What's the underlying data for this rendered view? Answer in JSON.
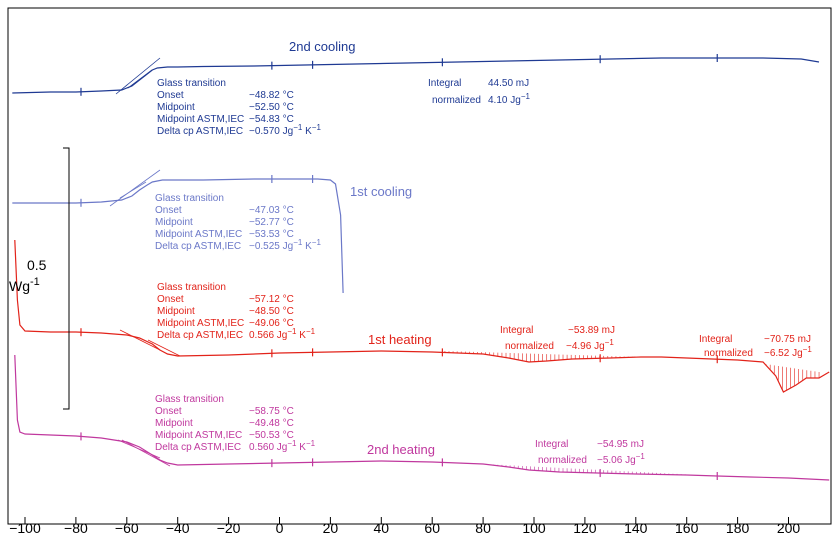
{
  "chart_data": {
    "type": "line",
    "title": "",
    "xlabel": "°C",
    "ylabel": "",
    "xlim": [
      -105,
      216
    ],
    "x_ticks": [
      "-100",
      "-80",
      "-60",
      "-40",
      "-20",
      "0",
      "20",
      "40",
      "60",
      "80",
      "100",
      "120",
      "140",
      "160",
      "180",
      "200",
      "°C"
    ],
    "grid": false,
    "scale_bar": {
      "value": "0.5",
      "unit": "Wg",
      "exponent": "-1"
    },
    "colors": {
      "2nd_cooling": "#1f3a93",
      "1st_cooling": "#6b78c8",
      "1st_heating": "#e2231a",
      "2nd_heating": "#c0389e"
    },
    "series": [
      {
        "name": "2nd cooling",
        "x": [
          -105,
          -90,
          -80,
          -70,
          -62,
          -58,
          -55,
          -52,
          -50,
          -48,
          -46,
          -44,
          -40,
          -30,
          -10,
          10,
          30,
          50,
          70,
          90,
          110,
          130,
          150,
          170,
          190,
          205,
          212
        ],
        "y": [
          93,
          92,
          92,
          91,
          90,
          86,
          80,
          74,
          70,
          68,
          67.5,
          67,
          67,
          66.5,
          66,
          65,
          64,
          63,
          62,
          61,
          60,
          59,
          58,
          58,
          58,
          59,
          62
        ],
        "annotation": {
          "heading": "Glass transition",
          "rows": [
            [
              "Onset",
              "−48.82 °C"
            ],
            [
              "Midpoint",
              "−52.50 °C"
            ],
            [
              "Midpoint ASTM,IEC",
              "−54.83 °C"
            ],
            [
              "Delta cp ASTM,IEC",
              "−0.570 Jg",
              "−1",
              " K",
              "−1"
            ]
          ],
          "integral": "44.50 mJ",
          "normalized": "4.10 Jg",
          "normalized_exp": "−1"
        }
      },
      {
        "name": "1st cooling",
        "x": [
          -105,
          -90,
          -80,
          -70,
          -62,
          -58,
          -55,
          -52,
          -50,
          -48,
          -46,
          -44,
          -40,
          -30,
          -10,
          5,
          15,
          20,
          22,
          24,
          25
        ],
        "y": [
          203,
          203,
          203,
          202,
          200,
          196,
          190,
          185,
          182,
          181,
          180,
          180,
          180,
          180,
          179,
          179,
          179,
          180,
          184,
          215,
          293
        ],
        "annotation": {
          "heading": "Glass transition",
          "rows": [
            [
              "Onset",
              "−47.03 °C"
            ],
            [
              "Midpoint",
              "−52.77 °C"
            ],
            [
              "Midpoint ASTM,IEC",
              "−53.53 °C"
            ],
            [
              "Delta cp ASTM,IEC",
              "−0.525 Jg",
              "−1",
              " K",
              "−1"
            ]
          ]
        }
      },
      {
        "name": "1st heating",
        "x": [
          -104,
          -103,
          -102,
          -100,
          -90,
          -80,
          -70,
          -60,
          -55,
          -50,
          -47,
          -44,
          -40,
          -20,
          0,
          20,
          40,
          60,
          80,
          90,
          98,
          105,
          115,
          130,
          142,
          150,
          160,
          170,
          180,
          190,
          195,
          198,
          203,
          207,
          212,
          216
        ],
        "y": [
          240,
          300,
          325,
          331,
          332,
          332,
          333,
          335,
          338,
          344,
          350,
          354,
          356,
          355,
          353,
          352,
          351,
          352,
          354,
          358,
          362,
          361,
          359,
          358,
          357,
          357,
          358,
          359,
          360,
          362,
          376,
          392,
          385,
          378,
          378,
          372
        ],
        "annotation": {
          "heading": "Glass transition",
          "rows": [
            [
              "Onset",
              "−57.12 °C"
            ],
            [
              "Midpoint",
              "−48.50 °C"
            ],
            [
              "Midpoint ASTM,IEC",
              "−49.06 °C"
            ],
            [
              "Delta cp ASTM,IEC",
              "0.566 Jg",
              "−1",
              " K",
              "−1"
            ]
          ],
          "integrals": [
            {
              "label": "Integral",
              "value": "−53.89 mJ",
              "normalized": "−4.96 Jg",
              "exp": "−1"
            },
            {
              "label": "Integral",
              "value": "−70.75 mJ",
              "normalized": "−6.52 Jg",
              "exp": "−1"
            }
          ]
        }
      },
      {
        "name": "2nd heating",
        "x": [
          -104,
          -103,
          -102,
          -100,
          -90,
          -80,
          -70,
          -60,
          -55,
          -50,
          -47,
          -44,
          -40,
          -20,
          0,
          20,
          40,
          60,
          80,
          90,
          98,
          110,
          125,
          140,
          160,
          172,
          185,
          200,
          216
        ],
        "y": [
          355,
          420,
          432,
          434,
          435,
          436,
          438,
          442,
          447,
          455,
          460,
          463,
          465,
          464,
          463,
          462,
          461,
          462,
          464,
          467,
          470,
          472,
          473,
          474,
          475,
          476,
          477,
          478,
          480
        ],
        "annotation": {
          "heading": "Glass transition",
          "rows": [
            [
              "Onset",
              "−58.75 °C"
            ],
            [
              "Midpoint",
              "−49.48 °C"
            ],
            [
              "Midpoint ASTM,IEC",
              "−50.53 °C"
            ],
            [
              "Delta cp ASTM,IEC",
              "0.560 Jg",
              "−1",
              " K",
              "−1"
            ]
          ],
          "integrals": [
            {
              "label": "Integral",
              "value": "−54.95 mJ",
              "normalized": "−5.06 Jg",
              "exp": "−1"
            }
          ]
        }
      }
    ]
  }
}
